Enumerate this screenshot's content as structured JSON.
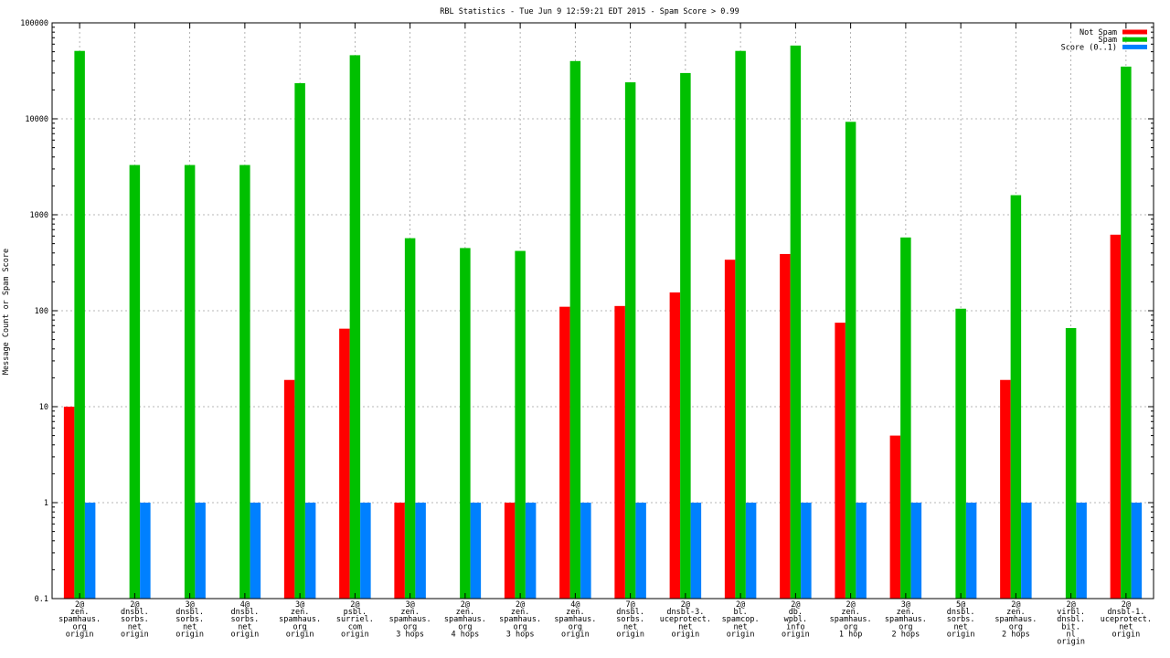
{
  "chart_data": {
    "type": "bar",
    "title": "RBL Statistics - Tue Jun  9 12:59:21 EDT 2015 - Spam Score > 0.99",
    "xlabel": "",
    "ylabel": "Message Count or Spam Score",
    "yscale": "log",
    "ylim": [
      0.1,
      100000
    ],
    "yticks": [
      "0.1",
      "1",
      "10",
      "100",
      "1000",
      "10000",
      "100000"
    ],
    "grid": true,
    "legend_position": "top-right",
    "categories": [
      [
        "2@",
        "zen.",
        "spamhaus.",
        "org",
        "origin"
      ],
      [
        "2@",
        "dnsbl.",
        "sorbs.",
        "net",
        "origin"
      ],
      [
        "3@",
        "dnsbl.",
        "sorbs.",
        "net",
        "origin"
      ],
      [
        "4@",
        "dnsbl.",
        "sorbs.",
        "net",
        "origin"
      ],
      [
        "3@",
        "zen.",
        "spamhaus.",
        "org",
        "origin"
      ],
      [
        "2@",
        "psbl.",
        "surriel.",
        "com",
        "origin"
      ],
      [
        "3@",
        "zen.",
        "spamhaus.",
        "org",
        "3 hops"
      ],
      [
        "2@",
        "zen.",
        "spamhaus.",
        "org",
        "4 hops"
      ],
      [
        "2@",
        "zen.",
        "spamhaus.",
        "org",
        "3 hops"
      ],
      [
        "4@",
        "zen.",
        "spamhaus.",
        "org",
        "origin"
      ],
      [
        "7@",
        "dnsbl.",
        "sorbs.",
        "net",
        "origin"
      ],
      [
        "2@",
        "dnsbl-3.",
        "uceprotect.",
        "net",
        "origin"
      ],
      [
        "2@",
        "bl.",
        "spamcop.",
        "net",
        "origin"
      ],
      [
        "2@",
        "db.",
        "wpbl.",
        "info",
        "origin"
      ],
      [
        "2@",
        "zen.",
        "spamhaus.",
        "org",
        "1 hop"
      ],
      [
        "3@",
        "zen.",
        "spamhaus.",
        "org",
        "2 hops"
      ],
      [
        "5@",
        "dnsbl.",
        "sorbs.",
        "net",
        "origin"
      ],
      [
        "2@",
        "zen.",
        "spamhaus.",
        "org",
        "2 hops"
      ],
      [
        "2@",
        "virbl.",
        "dnsbl.",
        "bit.",
        "nl",
        "origin"
      ],
      [
        "2@",
        "dnsbl-1.",
        "uceprotect.",
        "net",
        "origin"
      ]
    ],
    "series": [
      {
        "name": "Not Spam",
        "color": "#ff0000",
        "values": [
          10,
          null,
          null,
          null,
          19,
          65,
          1,
          null,
          1,
          110,
          112,
          155,
          340,
          390,
          75,
          5,
          null,
          19,
          null,
          620
        ]
      },
      {
        "name": "Spam",
        "color": "#00c000",
        "values": [
          51000,
          3300,
          3300,
          3300,
          23500,
          46000,
          570,
          450,
          420,
          40000,
          24000,
          30000,
          51000,
          58000,
          9300,
          580,
          105,
          1600,
          66,
          35000
        ]
      },
      {
        "name": "Score (0..1)",
        "color": "#0080ff",
        "values": [
          1,
          1,
          1,
          1,
          1,
          1,
          1,
          1,
          1,
          1,
          1,
          1,
          1,
          1,
          1,
          1,
          1,
          1,
          1,
          1
        ]
      }
    ]
  }
}
